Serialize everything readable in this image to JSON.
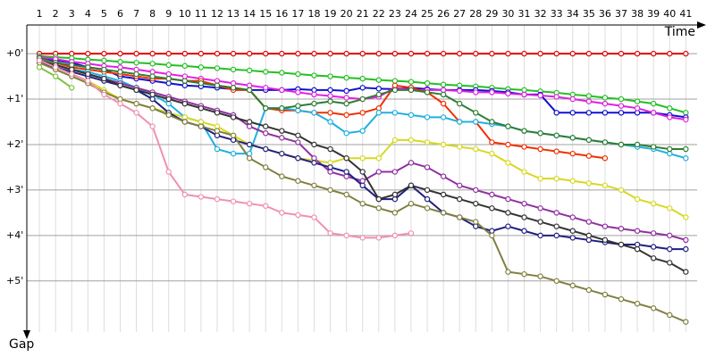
{
  "chart_data": {
    "type": "line",
    "x_label": "Time",
    "y_label": "Gap",
    "x": [
      1,
      2,
      3,
      4,
      5,
      6,
      7,
      8,
      9,
      10,
      11,
      12,
      13,
      14,
      15,
      16,
      17,
      18,
      19,
      20,
      21,
      22,
      23,
      24,
      25,
      26,
      27,
      28,
      29,
      30,
      31,
      32,
      33,
      34,
      35,
      36,
      37,
      38,
      39,
      40,
      41
    ],
    "xlim": [
      0,
      41.7
    ],
    "xticks": [
      1,
      2,
      3,
      4,
      5,
      6,
      7,
      8,
      9,
      10,
      11,
      12,
      13,
      14,
      15,
      16,
      17,
      18,
      19,
      20,
      21,
      22,
      23,
      24,
      25,
      26,
      27,
      28,
      29,
      30,
      31,
      32,
      33,
      34,
      35,
      36,
      37,
      38,
      39,
      40,
      41
    ],
    "ylim": [
      -0.63,
      6.3
    ],
    "yticks": [
      {
        "value": 0,
        "label": "+0'"
      },
      {
        "value": 1,
        "label": "+1'"
      },
      {
        "value": 2,
        "label": "+2'"
      },
      {
        "value": 3,
        "label": "+3'"
      },
      {
        "value": 4,
        "label": "+4'"
      },
      {
        "value": 5,
        "label": "+5'"
      }
    ],
    "y_inverted": true,
    "grid": true,
    "series": [
      {
        "color": "#e00000",
        "values": [
          0,
          0,
          0,
          0,
          0,
          0,
          0,
          0,
          0,
          0,
          0,
          0,
          0,
          0,
          0,
          0,
          0,
          0,
          0,
          0,
          0,
          0,
          0,
          0,
          0,
          0,
          0,
          0,
          0,
          0,
          0,
          0,
          0,
          0,
          0,
          0,
          0,
          0,
          0,
          0,
          0
        ]
      },
      {
        "color": "#22c022",
        "values": [
          0.05,
          0.08,
          0.1,
          0.13,
          0.15,
          0.18,
          0.2,
          0.22,
          0.25,
          0.27,
          0.3,
          0.32,
          0.35,
          0.37,
          0.4,
          0.42,
          0.45,
          0.48,
          0.5,
          0.53,
          0.55,
          0.58,
          0.6,
          0.62,
          0.65,
          0.68,
          0.7,
          0.72,
          0.75,
          0.78,
          0.8,
          0.83,
          0.86,
          0.9,
          0.93,
          0.97,
          1.0,
          1.05,
          1.1,
          1.2,
          1.3
        ]
      },
      {
        "color": "#1010d0",
        "values": [
          0.1,
          0.15,
          0.2,
          0.3,
          0.35,
          0.5,
          0.55,
          0.6,
          0.65,
          0.7,
          0.72,
          0.75,
          0.78,
          0.8,
          0.8,
          0.8,
          0.78,
          0.8,
          0.8,
          0.82,
          0.75,
          0.77,
          0.78,
          0.75,
          0.78,
          0.8,
          0.8,
          0.8,
          0.82,
          0.85,
          0.9,
          0.9,
          1.3,
          1.3,
          1.3,
          1.3,
          1.3,
          1.3,
          1.3,
          1.35,
          1.4
        ]
      },
      {
        "color": "#e020e0",
        "values": [
          0.08,
          0.12,
          0.18,
          0.22,
          0.27,
          0.3,
          0.35,
          0.4,
          0.45,
          0.5,
          0.55,
          0.6,
          0.65,
          0.7,
          0.75,
          0.8,
          0.85,
          0.9,
          0.93,
          0.97,
          1.0,
          0.95,
          0.75,
          0.8,
          0.8,
          0.8,
          0.82,
          0.85,
          0.85,
          0.88,
          0.9,
          0.92,
          0.95,
          1.0,
          1.05,
          1.1,
          1.15,
          1.2,
          1.3,
          1.4,
          1.45
        ]
      },
      {
        "color": "#f03000",
        "values": [
          0.1,
          0.2,
          0.3,
          0.35,
          0.4,
          0.45,
          0.5,
          0.55,
          0.55,
          0.6,
          0.6,
          0.7,
          0.8,
          0.8,
          1.2,
          1.25,
          1.25,
          1.3,
          1.3,
          1.35,
          1.3,
          1.2,
          0.7,
          0.75,
          0.85,
          1.1,
          1.5,
          1.5,
          1.95,
          2.0,
          2.05,
          2.1,
          2.15,
          2.2,
          2.25,
          2.3,
          null,
          null,
          null,
          null,
          null
        ]
      },
      {
        "color": "#20b0e0",
        "values": [
          0.15,
          0.25,
          0.35,
          0.4,
          0.5,
          0.6,
          0.75,
          0.9,
          1.1,
          1.4,
          1.5,
          2.1,
          2.2,
          2.2,
          1.2,
          1.2,
          1.25,
          1.3,
          1.5,
          1.75,
          1.7,
          1.3,
          1.3,
          1.35,
          1.4,
          1.4,
          1.5,
          1.5,
          1.55,
          1.6,
          1.7,
          1.75,
          1.8,
          1.85,
          1.9,
          1.95,
          2.0,
          2.05,
          2.1,
          2.2,
          2.3
        ]
      },
      {
        "color": "#2e7d32",
        "values": [
          0.1,
          0.2,
          0.25,
          0.3,
          0.35,
          0.4,
          0.45,
          0.5,
          0.55,
          0.6,
          0.65,
          0.7,
          0.75,
          0.8,
          1.2,
          1.2,
          1.15,
          1.1,
          1.05,
          1.1,
          1.0,
          0.9,
          0.8,
          0.8,
          0.85,
          0.9,
          1.1,
          1.3,
          1.5,
          1.6,
          1.7,
          1.75,
          1.8,
          1.85,
          1.9,
          1.95,
          2.0,
          2.0,
          2.05,
          2.1,
          2.1
        ]
      },
      {
        "color": "#d8d820",
        "values": [
          0.2,
          0.3,
          0.45,
          0.6,
          0.8,
          1.0,
          1.1,
          1.2,
          1.3,
          1.4,
          1.5,
          1.6,
          1.8,
          2.0,
          2.1,
          2.2,
          2.3,
          2.35,
          2.4,
          2.3,
          2.3,
          2.3,
          1.9,
          1.9,
          1.95,
          2.0,
          2.05,
          2.1,
          2.2,
          2.4,
          2.6,
          2.75,
          2.75,
          2.8,
          2.85,
          2.9,
          3.0,
          3.2,
          3.3,
          3.4,
          3.6
        ]
      },
      {
        "color": "#9030a0",
        "values": [
          0.15,
          0.25,
          0.35,
          0.45,
          0.55,
          0.65,
          0.75,
          0.85,
          0.95,
          1.05,
          1.15,
          1.25,
          1.35,
          1.6,
          1.75,
          1.85,
          1.95,
          2.3,
          2.6,
          2.7,
          2.8,
          2.6,
          2.6,
          2.4,
          2.5,
          2.7,
          2.9,
          3.0,
          3.1,
          3.2,
          3.3,
          3.4,
          3.5,
          3.6,
          3.7,
          3.8,
          3.85,
          3.9,
          3.95,
          4.0,
          4.1
        ]
      },
      {
        "color": "#202080",
        "values": [
          0.2,
          0.3,
          0.4,
          0.5,
          0.6,
          0.7,
          0.8,
          1.0,
          1.3,
          1.5,
          1.6,
          1.8,
          1.9,
          2.0,
          2.1,
          2.2,
          2.3,
          2.4,
          2.5,
          2.6,
          2.9,
          3.2,
          3.2,
          2.9,
          3.2,
          3.5,
          3.6,
          3.8,
          3.9,
          3.8,
          3.9,
          4.0,
          4.0,
          4.05,
          4.1,
          4.15,
          4.2,
          4.2,
          4.25,
          4.3,
          4.3
        ]
      },
      {
        "color": "#333333",
        "values": [
          0.15,
          0.25,
          0.35,
          0.45,
          0.55,
          0.7,
          0.8,
          0.9,
          1.0,
          1.1,
          1.2,
          1.3,
          1.4,
          1.5,
          1.6,
          1.7,
          1.8,
          2.0,
          2.1,
          2.3,
          2.6,
          3.2,
          3.1,
          2.9,
          3.0,
          3.1,
          3.2,
          3.3,
          3.4,
          3.5,
          3.6,
          3.7,
          3.8,
          3.9,
          4.0,
          4.1,
          4.2,
          4.3,
          4.5,
          4.6,
          4.8
        ]
      },
      {
        "color": "#808040",
        "values": [
          0.2,
          0.35,
          0.5,
          0.65,
          0.85,
          1.0,
          1.1,
          1.2,
          1.35,
          1.5,
          1.6,
          1.7,
          1.8,
          2.3,
          2.5,
          2.7,
          2.8,
          2.9,
          3.0,
          3.1,
          3.3,
          3.4,
          3.5,
          3.3,
          3.4,
          3.5,
          3.6,
          3.7,
          4.0,
          4.8,
          4.85,
          4.9,
          5.0,
          5.1,
          5.2,
          5.3,
          5.4,
          5.5,
          5.6,
          5.75,
          5.9
        ]
      },
      {
        "color": "#f090b0",
        "values": [
          0.15,
          0.3,
          0.45,
          0.6,
          0.9,
          1.1,
          1.3,
          1.6,
          2.6,
          3.1,
          3.15,
          3.2,
          3.25,
          3.3,
          3.35,
          3.5,
          3.55,
          3.6,
          3.95,
          4.0,
          4.05,
          4.05,
          4.0,
          3.95,
          null,
          null,
          null,
          null,
          null,
          null,
          null,
          null,
          null,
          null,
          null,
          null,
          null,
          null,
          null,
          null,
          null
        ]
      },
      {
        "color": "#80c040",
        "values": [
          0.3,
          0.5,
          0.75,
          null,
          null,
          null,
          null,
          null,
          null,
          null,
          null,
          null,
          null,
          null,
          null,
          null,
          null,
          null,
          null,
          null,
          null,
          null,
          null,
          null,
          null,
          null,
          null,
          null,
          null,
          null,
          null,
          null,
          null,
          null,
          null,
          null,
          null,
          null,
          null,
          null,
          null
        ]
      }
    ]
  }
}
